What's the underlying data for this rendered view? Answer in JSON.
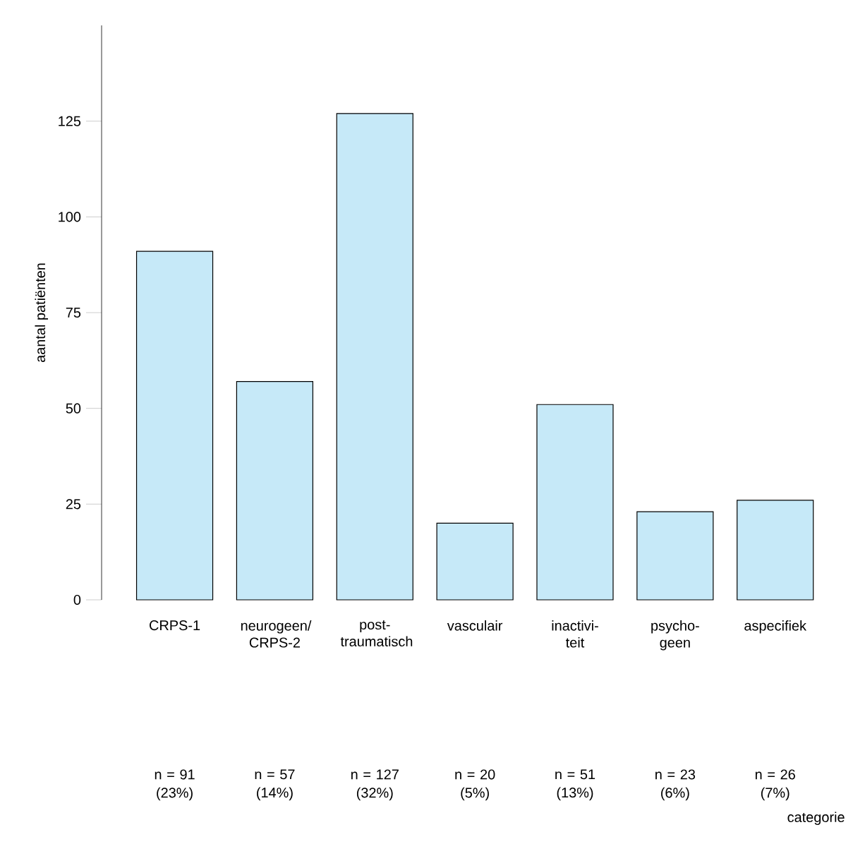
{
  "chart_data": {
    "type": "bar",
    "annotations": [
      "categorie"
    ],
    "ylabel": "aantal patiënten",
    "categories": [
      "CRPS-1",
      "neurogeen/ CRPS-2",
      "post- traumatisch",
      "vasculair",
      "inactivi- teit",
      "psycho- geen",
      "aspecifiek"
    ],
    "values": [
      91,
      57,
      127,
      20,
      51,
      23,
      26
    ],
    "value_labels": [
      "n = 91 (23%)",
      "n = 57 (14%)",
      "n = 127 (32%)",
      "n = 20 (5%)",
      "n = 51 (13%)",
      "n = 23 (6%)",
      "n = 26 (7%)"
    ],
    "color": "#c6e9f8",
    "ylim": [
      0,
      150
    ],
    "yticks": [
      0,
      25,
      50,
      75,
      100,
      125
    ],
    "grid": false
  }
}
